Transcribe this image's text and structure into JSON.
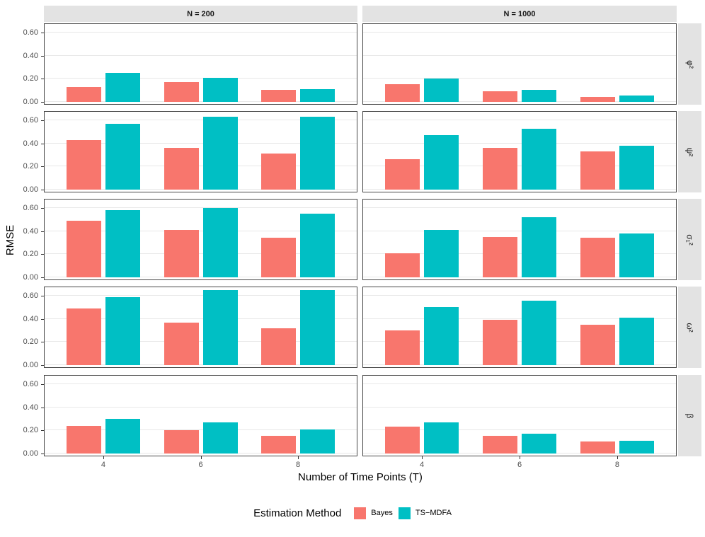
{
  "axes": {
    "y_title": "RMSE",
    "x_title": "Number of Time Points (T)",
    "y_tick_labels": [
      "0.00",
      "0.20",
      "0.40",
      "0.60"
    ],
    "x_tick_labels": [
      "4",
      "6",
      "8"
    ]
  },
  "legend": {
    "title": "Estimation Method",
    "items": [
      {
        "label": "Bayes",
        "color": "#F8766D"
      },
      {
        "label": "TS−MDFA",
        "color": "#00BFC4"
      }
    ]
  },
  "colors": {
    "bayes": "#F8766D",
    "ts_mdfa": "#00BFC4",
    "strip_background": "#E3E3E3",
    "panel_border": "#474747",
    "gridline": "#E8E8E8",
    "background": "#FFFFFF"
  },
  "chart_data": {
    "type": "bar",
    "title": "",
    "xlabel": "Number of Time Points (T)",
    "ylabel": "RMSE",
    "facet_columns": [
      "N = 200",
      "N = 1000"
    ],
    "facet_rows": [
      "φ²",
      "ψ²",
      "σ₁²",
      "ω²",
      "β"
    ],
    "categories": [
      4,
      6,
      8
    ],
    "series_names": [
      "Bayes",
      "TS−MDFA"
    ],
    "ylim": [
      0,
      0.68
    ],
    "y_gridlines": [
      0.0,
      0.2,
      0.4,
      0.6
    ],
    "grid": "horizontal major only",
    "legend_position": "bottom",
    "panels": [
      {
        "row": "φ²",
        "col": "N = 200",
        "series": [
          {
            "name": "Bayes",
            "values": [
              0.13,
              0.17,
              0.1
            ]
          },
          {
            "name": "TS−MDFA",
            "values": [
              0.25,
              0.21,
              0.11
            ]
          }
        ]
      },
      {
        "row": "φ²",
        "col": "N = 1000",
        "series": [
          {
            "name": "Bayes",
            "values": [
              0.15,
              0.09,
              0.04
            ]
          },
          {
            "name": "TS−MDFA",
            "values": [
              0.2,
              0.1,
              0.05
            ]
          }
        ]
      },
      {
        "row": "ψ²",
        "col": "N = 200",
        "series": [
          {
            "name": "Bayes",
            "values": [
              0.43,
              0.36,
              0.31
            ]
          },
          {
            "name": "TS−MDFA",
            "values": [
              0.57,
              0.63,
              0.63
            ]
          }
        ]
      },
      {
        "row": "ψ²",
        "col": "N = 1000",
        "series": [
          {
            "name": "Bayes",
            "values": [
              0.26,
              0.36,
              0.33
            ]
          },
          {
            "name": "TS−MDFA",
            "values": [
              0.47,
              0.53,
              0.38
            ]
          }
        ]
      },
      {
        "row": "σ₁²",
        "col": "N = 200",
        "series": [
          {
            "name": "Bayes",
            "values": [
              0.49,
              0.41,
              0.34
            ]
          },
          {
            "name": "TS−MDFA",
            "values": [
              0.58,
              0.6,
              0.55
            ]
          }
        ]
      },
      {
        "row": "σ₁²",
        "col": "N = 1000",
        "series": [
          {
            "name": "Bayes",
            "values": [
              0.21,
              0.35,
              0.34
            ]
          },
          {
            "name": "TS−MDFA",
            "values": [
              0.41,
              0.52,
              0.38
            ]
          }
        ]
      },
      {
        "row": "ω²",
        "col": "N = 200",
        "series": [
          {
            "name": "Bayes",
            "values": [
              0.49,
              0.37,
              0.32
            ]
          },
          {
            "name": "TS−MDFA",
            "values": [
              0.59,
              0.65,
              0.65
            ]
          }
        ]
      },
      {
        "row": "ω²",
        "col": "N = 1000",
        "series": [
          {
            "name": "Bayes",
            "values": [
              0.3,
              0.39,
              0.35
            ]
          },
          {
            "name": "TS−MDFA",
            "values": [
              0.5,
              0.56,
              0.41
            ]
          }
        ]
      },
      {
        "row": "β",
        "col": "N = 200",
        "series": [
          {
            "name": "Bayes",
            "values": [
              0.24,
              0.2,
              0.15
            ]
          },
          {
            "name": "TS−MDFA",
            "values": [
              0.3,
              0.27,
              0.21
            ]
          }
        ]
      },
      {
        "row": "β",
        "col": "N = 1000",
        "series": [
          {
            "name": "Bayes",
            "values": [
              0.23,
              0.15,
              0.1
            ]
          },
          {
            "name": "TS−MDFA",
            "values": [
              0.27,
              0.17,
              0.11
            ]
          }
        ]
      }
    ]
  }
}
